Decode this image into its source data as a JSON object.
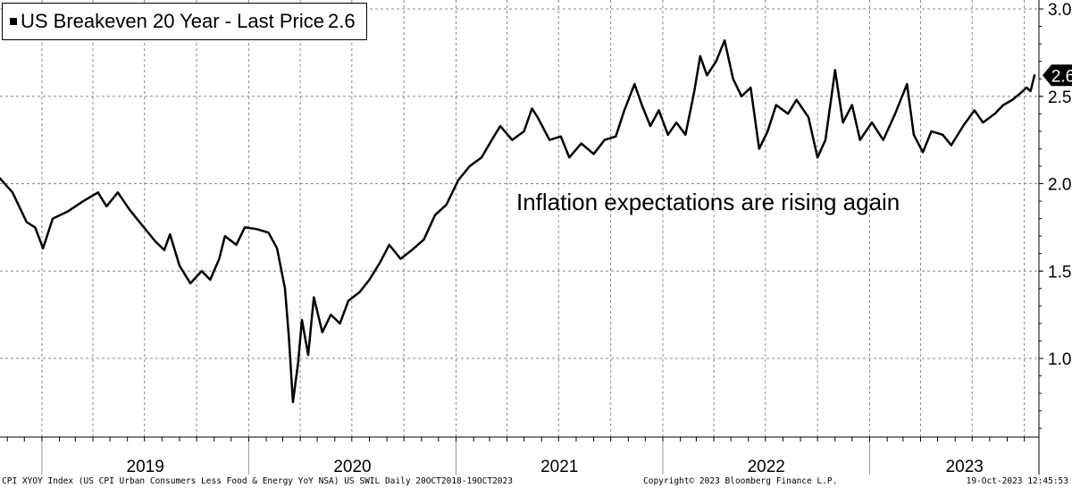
{
  "chart_data": {
    "type": "line",
    "series": [
      {
        "name": "US Breakeven 20 Year",
        "points": [
          [
            "2018-10-19",
            2.03
          ],
          [
            "2018-11-10",
            1.95
          ],
          [
            "2018-12-05",
            1.78
          ],
          [
            "2018-12-20",
            1.75
          ],
          [
            "2019-01-03",
            1.63
          ],
          [
            "2019-01-20",
            1.8
          ],
          [
            "2019-02-15",
            1.84
          ],
          [
            "2019-03-15",
            1.9
          ],
          [
            "2019-04-10",
            1.95
          ],
          [
            "2019-04-25",
            1.87
          ],
          [
            "2019-05-15",
            1.95
          ],
          [
            "2019-06-05",
            1.85
          ],
          [
            "2019-06-25",
            1.77
          ],
          [
            "2019-07-20",
            1.67
          ],
          [
            "2019-08-05",
            1.62
          ],
          [
            "2019-08-15",
            1.71
          ],
          [
            "2019-09-01",
            1.53
          ],
          [
            "2019-09-20",
            1.43
          ],
          [
            "2019-10-10",
            1.5
          ],
          [
            "2019-10-25",
            1.45
          ],
          [
            "2019-11-10",
            1.57
          ],
          [
            "2019-11-20",
            1.7
          ],
          [
            "2019-12-10",
            1.65
          ],
          [
            "2019-12-25",
            1.75
          ],
          [
            "2020-01-15",
            1.74
          ],
          [
            "2020-02-05",
            1.72
          ],
          [
            "2020-02-20",
            1.63
          ],
          [
            "2020-03-05",
            1.4
          ],
          [
            "2020-03-12",
            1.12
          ],
          [
            "2020-03-19",
            0.75
          ],
          [
            "2020-03-28",
            0.97
          ],
          [
            "2020-04-04",
            1.22
          ],
          [
            "2020-04-15",
            1.02
          ],
          [
            "2020-04-25",
            1.35
          ],
          [
            "2020-05-10",
            1.15
          ],
          [
            "2020-05-25",
            1.25
          ],
          [
            "2020-06-10",
            1.2
          ],
          [
            "2020-06-25",
            1.33
          ],
          [
            "2020-07-15",
            1.38
          ],
          [
            "2020-08-01",
            1.45
          ],
          [
            "2020-08-20",
            1.55
          ],
          [
            "2020-09-05",
            1.65
          ],
          [
            "2020-09-25",
            1.57
          ],
          [
            "2020-10-15",
            1.62
          ],
          [
            "2020-11-05",
            1.68
          ],
          [
            "2020-11-25",
            1.82
          ],
          [
            "2020-12-15",
            1.88
          ],
          [
            "2021-01-05",
            2.02
          ],
          [
            "2021-01-25",
            2.1
          ],
          [
            "2021-02-15",
            2.15
          ],
          [
            "2021-03-05",
            2.25
          ],
          [
            "2021-03-20",
            2.33
          ],
          [
            "2021-04-10",
            2.25
          ],
          [
            "2021-05-01",
            2.3
          ],
          [
            "2021-05-15",
            2.43
          ],
          [
            "2021-05-25",
            2.38
          ],
          [
            "2021-06-15",
            2.25
          ],
          [
            "2021-07-05",
            2.27
          ],
          [
            "2021-07-20",
            2.15
          ],
          [
            "2021-08-10",
            2.23
          ],
          [
            "2021-09-01",
            2.17
          ],
          [
            "2021-09-20",
            2.25
          ],
          [
            "2021-10-10",
            2.27
          ],
          [
            "2021-10-25",
            2.42
          ],
          [
            "2021-11-12",
            2.57
          ],
          [
            "2021-11-25",
            2.45
          ],
          [
            "2021-12-10",
            2.33
          ],
          [
            "2021-12-25",
            2.42
          ],
          [
            "2022-01-10",
            2.28
          ],
          [
            "2022-01-25",
            2.35
          ],
          [
            "2022-02-10",
            2.28
          ],
          [
            "2022-02-25",
            2.52
          ],
          [
            "2022-03-08",
            2.73
          ],
          [
            "2022-03-20",
            2.62
          ],
          [
            "2022-04-05",
            2.7
          ],
          [
            "2022-04-20",
            2.82
          ],
          [
            "2022-05-05",
            2.6
          ],
          [
            "2022-05-20",
            2.5
          ],
          [
            "2022-06-05",
            2.55
          ],
          [
            "2022-06-20",
            2.2
          ],
          [
            "2022-07-05",
            2.3
          ],
          [
            "2022-07-20",
            2.45
          ],
          [
            "2022-08-10",
            2.4
          ],
          [
            "2022-08-25",
            2.48
          ],
          [
            "2022-09-15",
            2.38
          ],
          [
            "2022-10-01",
            2.15
          ],
          [
            "2022-10-15",
            2.25
          ],
          [
            "2022-11-01",
            2.65
          ],
          [
            "2022-11-15",
            2.35
          ],
          [
            "2022-12-01",
            2.45
          ],
          [
            "2022-12-15",
            2.25
          ],
          [
            "2023-01-05",
            2.35
          ],
          [
            "2023-01-25",
            2.25
          ],
          [
            "2023-02-15",
            2.4
          ],
          [
            "2023-03-08",
            2.57
          ],
          [
            "2023-03-20",
            2.28
          ],
          [
            "2023-04-05",
            2.18
          ],
          [
            "2023-04-20",
            2.3
          ],
          [
            "2023-05-10",
            2.28
          ],
          [
            "2023-05-25",
            2.22
          ],
          [
            "2023-06-15",
            2.33
          ],
          [
            "2023-07-05",
            2.42
          ],
          [
            "2023-07-20",
            2.35
          ],
          [
            "2023-08-10",
            2.4
          ],
          [
            "2023-08-25",
            2.45
          ],
          [
            "2023-09-10",
            2.48
          ],
          [
            "2023-09-25",
            2.52
          ],
          [
            "2023-10-05",
            2.55
          ],
          [
            "2023-10-12",
            2.53
          ],
          [
            "2023-10-19",
            2.62
          ]
        ]
      }
    ],
    "xlabel": "",
    "ylabel": "",
    "x_range": [
      "2018-10-19",
      "2023-10-19"
    ],
    "y_range": [
      0.55,
      3.0
    ],
    "y_ticks": [
      1.0,
      1.5,
      2.0,
      2.5,
      3.0
    ],
    "y_tick_labels": [
      "1.0",
      "1.5",
      "2.0",
      "2.5",
      "3.0"
    ],
    "x_years": [
      {
        "label": "2019",
        "start": "2019-01-01",
        "end": "2020-01-01"
      },
      {
        "label": "2020",
        "start": "2020-01-01",
        "end": "2021-01-01"
      },
      {
        "label": "2021",
        "start": "2021-01-01",
        "end": "2022-01-01"
      },
      {
        "label": "2022",
        "start": "2022-01-01",
        "end": "2023-01-01"
      },
      {
        "label": "2023",
        "start": "2023-01-01",
        "end": "2023-10-19"
      }
    ],
    "grid": true,
    "axis_side": "right",
    "line_color": "#000000",
    "last_value_label": "2.6"
  },
  "legend": {
    "series_name": "US Breakeven 20 Year",
    "separator": " - ",
    "last_price_label": "Last Price",
    "last_price_value": "2.6"
  },
  "annotation": "Inflation expectations are rising again",
  "footer": {
    "left": "CPI XYOY Index (US CPI Urban Consumers Less Food & Energy YoY NSA) US SWIL  Daily 20OCT2018-19OCT2023",
    "center": "Copyright© 2023 Bloomberg Finance L.P.",
    "right": "19-Oct-2023 12:45:53"
  }
}
